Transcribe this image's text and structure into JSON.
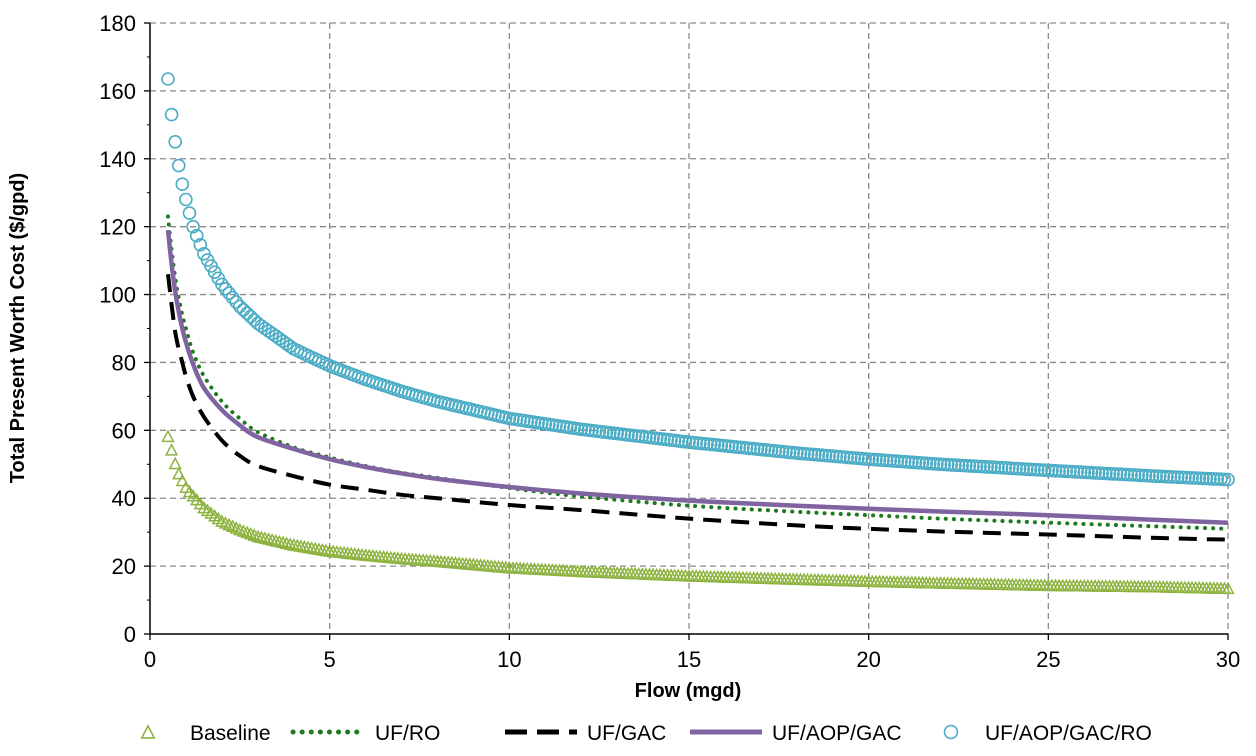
{
  "chart_data": {
    "type": "line",
    "title": "",
    "xlabel": "Flow (mgd)",
    "ylabel": "Total Present Worth Cost ($/gpd)",
    "xlim": [
      0,
      30
    ],
    "ylim": [
      0,
      180
    ],
    "xticks": [
      "0",
      "5",
      "10",
      "15",
      "20",
      "25",
      "30"
    ],
    "yticks": [
      "0",
      "20",
      "40",
      "60",
      "80",
      "100",
      "120",
      "140",
      "160",
      "180"
    ],
    "grid": true,
    "legend_position": "bottom",
    "x": [
      0.5,
      0.6,
      0.7,
      0.8,
      0.9,
      1.0,
      1.2,
      1.5,
      2,
      2.5,
      3,
      4,
      5,
      6,
      7,
      8,
      10,
      12,
      15,
      18,
      20,
      22,
      25,
      28,
      30
    ],
    "series": [
      {
        "name": "Baseline",
        "style": "triangle-marker",
        "color": "#8DB33F",
        "values": [
          58,
          54,
          50,
          47,
          45,
          43,
          40.5,
          37,
          33,
          30.5,
          28.5,
          26,
          24.2,
          23,
          22,
          21.2,
          19.3,
          18.2,
          16.9,
          15.9,
          15.3,
          14.8,
          14.1,
          13.7,
          13.2
        ]
      },
      {
        "name": "UF/RO",
        "style": "dotted",
        "color": "#1E7A1E",
        "values": [
          123,
          113,
          105,
          99,
          94,
          90,
          83,
          76,
          68.5,
          63.5,
          59.5,
          55,
          52,
          49.5,
          47.5,
          46,
          43,
          40.5,
          37.8,
          36,
          35,
          34,
          32.8,
          31.7,
          31
        ]
      },
      {
        "name": "UF/GAC",
        "style": "dashed",
        "color": "#000000",
        "values": [
          106,
          97,
          89,
          84,
          80,
          76,
          70,
          64,
          57,
          52.5,
          49.5,
          46.5,
          44,
          42.5,
          41,
          40,
          38,
          36.5,
          34,
          32,
          31,
          30.2,
          29.3,
          28.3,
          27.8
        ]
      },
      {
        "name": "UF/AOP/GAC",
        "style": "solid",
        "color": "#8064A2",
        "values": [
          119,
          109,
          101,
          95,
          90,
          86,
          79.5,
          72.5,
          66,
          61.5,
          58,
          54.5,
          51.5,
          49.2,
          47.3,
          45.7,
          43.3,
          41.4,
          39.3,
          37.8,
          36.9,
          36.1,
          35,
          33.6,
          32.8
        ]
      },
      {
        "name": "UF/AOP/GAC/RO",
        "style": "circle-marker",
        "color": "#4BACC6",
        "values": [
          163.5,
          153,
          145,
          138,
          132.5,
          128,
          120,
          112,
          103,
          96.5,
          91.5,
          84,
          79,
          75,
          71.5,
          68.5,
          63.5,
          60.3,
          56.5,
          53.3,
          51.5,
          50,
          48.2,
          46.5,
          45.5
        ]
      }
    ]
  }
}
